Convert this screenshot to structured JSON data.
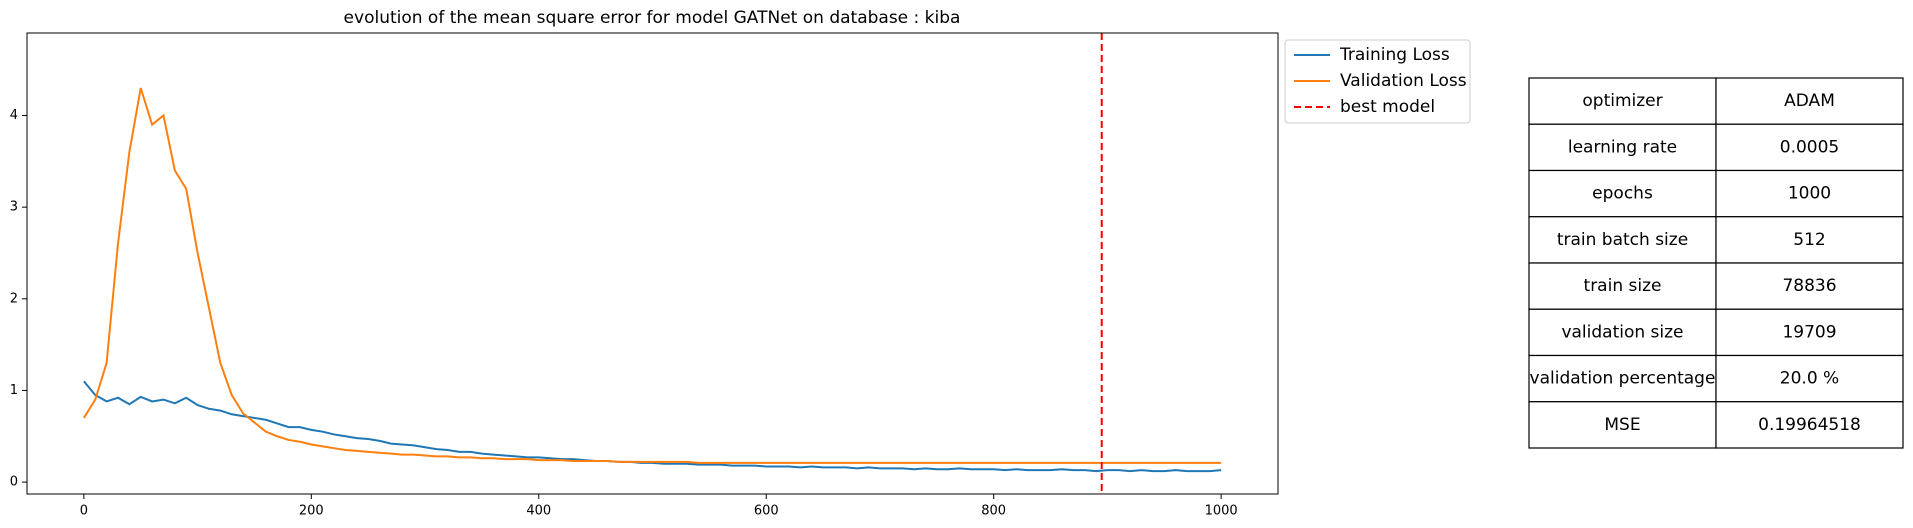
{
  "chart_data": {
    "type": "line",
    "title": "evolution of the mean square error for model GATNet on database : kiba",
    "x": [
      0,
      10,
      20,
      30,
      40,
      50,
      60,
      70,
      80,
      90,
      100,
      110,
      120,
      130,
      140,
      150,
      160,
      170,
      180,
      190,
      200,
      210,
      220,
      230,
      240,
      250,
      260,
      270,
      280,
      290,
      300,
      310,
      320,
      330,
      340,
      350,
      360,
      370,
      380,
      390,
      400,
      410,
      420,
      430,
      440,
      450,
      460,
      470,
      480,
      490,
      500,
      510,
      520,
      530,
      540,
      550,
      560,
      570,
      580,
      590,
      600,
      610,
      620,
      630,
      640,
      650,
      660,
      670,
      680,
      690,
      700,
      710,
      720,
      730,
      740,
      750,
      760,
      770,
      780,
      790,
      800,
      810,
      820,
      830,
      840,
      850,
      860,
      870,
      880,
      890,
      900,
      910,
      920,
      930,
      940,
      950,
      960,
      970,
      980,
      990,
      1000
    ],
    "series": [
      {
        "name": "Training Loss",
        "color": "#1f77b4",
        "values": [
          1.1,
          0.95,
          0.88,
          0.92,
          0.85,
          0.93,
          0.88,
          0.9,
          0.86,
          0.92,
          0.84,
          0.8,
          0.78,
          0.74,
          0.72,
          0.7,
          0.68,
          0.64,
          0.6,
          0.6,
          0.57,
          0.55,
          0.52,
          0.5,
          0.48,
          0.47,
          0.45,
          0.42,
          0.41,
          0.4,
          0.38,
          0.36,
          0.35,
          0.33,
          0.33,
          0.31,
          0.3,
          0.29,
          0.28,
          0.27,
          0.27,
          0.26,
          0.25,
          0.25,
          0.24,
          0.23,
          0.23,
          0.22,
          0.22,
          0.21,
          0.21,
          0.2,
          0.2,
          0.2,
          0.19,
          0.19,
          0.19,
          0.18,
          0.18,
          0.18,
          0.17,
          0.17,
          0.17,
          0.16,
          0.17,
          0.16,
          0.16,
          0.16,
          0.15,
          0.16,
          0.15,
          0.15,
          0.15,
          0.14,
          0.15,
          0.14,
          0.14,
          0.15,
          0.14,
          0.14,
          0.14,
          0.13,
          0.14,
          0.13,
          0.13,
          0.13,
          0.14,
          0.13,
          0.13,
          0.12,
          0.13,
          0.13,
          0.12,
          0.13,
          0.12,
          0.12,
          0.13,
          0.12,
          0.12,
          0.12,
          0.13
        ]
      },
      {
        "name": "Validation Loss",
        "color": "#ff7f0e",
        "values": [
          0.7,
          0.9,
          1.3,
          2.6,
          3.6,
          4.3,
          3.9,
          4.0,
          3.4,
          3.2,
          2.5,
          1.9,
          1.3,
          0.95,
          0.75,
          0.65,
          0.55,
          0.5,
          0.46,
          0.44,
          0.41,
          0.39,
          0.37,
          0.35,
          0.34,
          0.33,
          0.32,
          0.31,
          0.3,
          0.3,
          0.29,
          0.28,
          0.28,
          0.27,
          0.27,
          0.26,
          0.26,
          0.25,
          0.25,
          0.25,
          0.24,
          0.24,
          0.24,
          0.23,
          0.23,
          0.23,
          0.23,
          0.22,
          0.22,
          0.22,
          0.22,
          0.22,
          0.22,
          0.22,
          0.21,
          0.21,
          0.21,
          0.21,
          0.21,
          0.21,
          0.21,
          0.21,
          0.21,
          0.21,
          0.21,
          0.21,
          0.21,
          0.21,
          0.21,
          0.21,
          0.21,
          0.21,
          0.21,
          0.21,
          0.21,
          0.21,
          0.21,
          0.21,
          0.21,
          0.21,
          0.21,
          0.21,
          0.21,
          0.21,
          0.21,
          0.21,
          0.21,
          0.21,
          0.21,
          0.21,
          0.21,
          0.21,
          0.21,
          0.21,
          0.21,
          0.21,
          0.21,
          0.21,
          0.21,
          0.21,
          0.21
        ]
      }
    ],
    "best_model": {
      "name": "best model",
      "x": 895,
      "color": "#ff0000"
    },
    "xlim": [
      -50,
      1050
    ],
    "ylim": [
      -0.13,
      4.9
    ],
    "xticks": [
      0,
      200,
      400,
      600,
      800,
      1000
    ],
    "yticks": [
      0,
      1,
      2,
      3,
      4
    ]
  },
  "table": {
    "rows": [
      [
        "optimizer",
        "ADAM"
      ],
      [
        "learning rate",
        "0.0005"
      ],
      [
        "epochs",
        "1000"
      ],
      [
        "train batch size",
        "512"
      ],
      [
        "train size",
        "78836"
      ],
      [
        "validation size",
        "19709"
      ],
      [
        "validation percentage",
        "20.0 %"
      ],
      [
        "MSE",
        "0.19964518"
      ]
    ]
  }
}
